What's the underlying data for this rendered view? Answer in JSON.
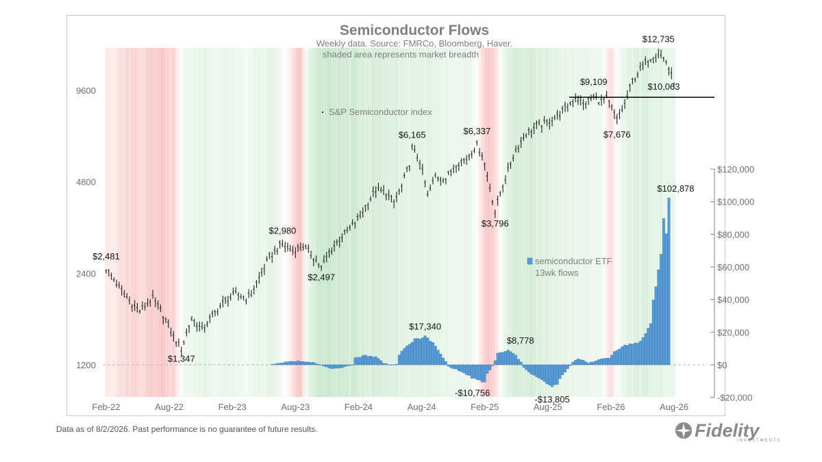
{
  "footer": {
    "note": "Data as of 8/2/2026. Past performance is no guarantee of future results."
  },
  "logo": {
    "name": "Fidelity",
    "sub": "INVESTMENTS"
  },
  "chart_data": {
    "type": "line",
    "title": "Semiconductor Flows",
    "subtitle": [
      "Weekly data.  Source: FMRCo, Bloomberg, Haver.",
      "shaded area represents market breadth"
    ],
    "x_ticks": [
      "Feb-22",
      "Aug-22",
      "Feb-23",
      "Aug-23",
      "Feb-24",
      "Aug-24",
      "Feb-25",
      "Aug-25",
      "Feb-26",
      "Aug-26"
    ],
    "y_left": {
      "scale": "log",
      "ticks": [
        1200,
        2400,
        4800,
        9600
      ],
      "labels": [
        "1200",
        "2400",
        "4800",
        "9600"
      ]
    },
    "y_right": {
      "range": [
        -20000,
        120000
      ],
      "ticks": [
        -20000,
        0,
        20000,
        40000,
        60000,
        80000,
        100000,
        120000
      ],
      "labels": [
        "-$20,000",
        "$0",
        "$20,000",
        "$40,000",
        "$60,000",
        "$80,000",
        "$100,000",
        "$120,000"
      ]
    },
    "legend": {
      "index_label": "S&P Semiconductor index",
      "flow_label": [
        "semiconductor ETF",
        "13wk flows"
      ]
    },
    "annotations": [
      {
        "text": "$2,481",
        "series": "index",
        "week": 0,
        "value": 2481
      },
      {
        "text": "$1,347",
        "series": "index",
        "week": 29,
        "value": 1347
      },
      {
        "text": "$2,980",
        "series": "index",
        "week": 68,
        "value": 2980
      },
      {
        "text": "$2,497",
        "series": "index",
        "week": 83,
        "value": 2497
      },
      {
        "text": "$6,165",
        "series": "index",
        "week": 118,
        "value": 6165
      },
      {
        "text": "$6,337",
        "series": "index",
        "week": 143,
        "value": 6337
      },
      {
        "text": "$3,796",
        "series": "index",
        "week": 150,
        "value": 3796
      },
      {
        "text": "$9,109",
        "series": "index",
        "week": 188,
        "value": 9109
      },
      {
        "text": "$7,676",
        "series": "index",
        "week": 197,
        "value": 7676
      },
      {
        "text": "$12,735",
        "series": "index",
        "week": 213,
        "value": 12735
      },
      {
        "text": "$10,063",
        "series": "index",
        "week": 219,
        "value": 10063
      },
      {
        "text": "$17,340",
        "series": "flows",
        "week": 123,
        "value": 17340
      },
      {
        "text": "-$10,756",
        "series": "flows",
        "week": 146,
        "value": -10756
      },
      {
        "text": "$8,778",
        "series": "flows",
        "week": 155,
        "value": 8778
      },
      {
        "text": "-$13,805",
        "series": "flows",
        "week": 172,
        "value": -13805
      },
      {
        "text": "$102,878",
        "series": "flows",
        "week": 217,
        "value": 102878
      }
    ],
    "reference_line": {
      "value": 9109,
      "series": "index"
    },
    "index_anchors": [
      [
        0,
        2481
      ],
      [
        5,
        2150
      ],
      [
        10,
        1900
      ],
      [
        13,
        1800
      ],
      [
        18,
        1980
      ],
      [
        22,
        1750
      ],
      [
        26,
        1480
      ],
      [
        29,
        1347
      ],
      [
        33,
        1700
      ],
      [
        37,
        1560
      ],
      [
        42,
        1780
      ],
      [
        46,
        1950
      ],
      [
        50,
        2050
      ],
      [
        54,
        1980
      ],
      [
        56,
        2050
      ],
      [
        60,
        2400
      ],
      [
        63,
        2700
      ],
      [
        67,
        2950
      ],
      [
        68,
        2980
      ],
      [
        72,
        2850
      ],
      [
        76,
        2950
      ],
      [
        80,
        2700
      ],
      [
        83,
        2497
      ],
      [
        86,
        2800
      ],
      [
        90,
        3100
      ],
      [
        94,
        3350
      ],
      [
        98,
        3700
      ],
      [
        101,
        4100
      ],
      [
        104,
        4500
      ],
      [
        108,
        4400
      ],
      [
        111,
        4100
      ],
      [
        114,
        4600
      ],
      [
        117,
        5500
      ],
      [
        118,
        6165
      ],
      [
        121,
        5600
      ],
      [
        124,
        4300
      ],
      [
        127,
        5000
      ],
      [
        131,
        4900
      ],
      [
        135,
        5500
      ],
      [
        139,
        5700
      ],
      [
        143,
        6337
      ],
      [
        145,
        5900
      ],
      [
        147,
        5000
      ],
      [
        150,
        3796
      ],
      [
        152,
        4400
      ],
      [
        155,
        5200
      ],
      [
        158,
        6100
      ],
      [
        162,
        6900
      ],
      [
        166,
        7300
      ],
      [
        170,
        7500
      ],
      [
        174,
        7900
      ],
      [
        178,
        8500
      ],
      [
        181,
        9100
      ],
      [
        184,
        8600
      ],
      [
        188,
        9109
      ],
      [
        191,
        8800
      ],
      [
        193,
        9000
      ],
      [
        197,
        7676
      ],
      [
        200,
        8600
      ],
      [
        203,
        10300
      ],
      [
        206,
        11200
      ],
      [
        209,
        12100
      ],
      [
        211,
        12400
      ],
      [
        213,
        12735
      ],
      [
        216,
        11900
      ],
      [
        219,
        10063
      ]
    ],
    "flow_anchors": [
      [
        0,
        null
      ],
      [
        62,
        null
      ],
      [
        63,
        300
      ],
      [
        66,
        700
      ],
      [
        70,
        1800
      ],
      [
        74,
        2300
      ],
      [
        78,
        1900
      ],
      [
        80,
        1500
      ],
      [
        82,
        300
      ],
      [
        85,
        -1500
      ],
      [
        88,
        -2500
      ],
      [
        91,
        -2000
      ],
      [
        93,
        -600
      ],
      [
        95,
        0
      ],
      [
        96,
        4200
      ],
      [
        100,
        5800
      ],
      [
        104,
        4800
      ],
      [
        106,
        2500
      ],
      [
        107,
        1000
      ],
      [
        109,
        300
      ],
      [
        111,
        0
      ],
      [
        112,
        500
      ],
      [
        113,
        6000
      ],
      [
        116,
        11500
      ],
      [
        119,
        15500
      ],
      [
        123,
        17340
      ],
      [
        126,
        13500
      ],
      [
        129,
        6500
      ],
      [
        131,
        2000
      ],
      [
        132,
        -1000
      ],
      [
        136,
        -3500
      ],
      [
        139,
        -6000
      ],
      [
        143,
        -9500
      ],
      [
        146,
        -10756
      ],
      [
        147,
        -5500
      ],
      [
        149,
        -500
      ],
      [
        150,
        2500
      ],
      [
        151,
        6800
      ],
      [
        153,
        7800
      ],
      [
        155,
        8778
      ],
      [
        158,
        5800
      ],
      [
        160,
        1500
      ],
      [
        161,
        -1500
      ],
      [
        164,
        -5500
      ],
      [
        167,
        -8500
      ],
      [
        170,
        -11500
      ],
      [
        172,
        -13805
      ],
      [
        174,
        -11500
      ],
      [
        176,
        -6500
      ],
      [
        178,
        -2500
      ],
      [
        180,
        1500
      ],
      [
        182,
        3800
      ],
      [
        184,
        2800
      ],
      [
        186,
        1200
      ],
      [
        189,
        2500
      ],
      [
        192,
        3800
      ],
      [
        194,
        4200
      ],
      [
        196,
        8000
      ],
      [
        199,
        11500
      ],
      [
        202,
        12500
      ],
      [
        205,
        13500
      ],
      [
        207,
        16500
      ],
      [
        210,
        25000
      ],
      [
        211,
        40000
      ],
      [
        212,
        48000
      ],
      [
        214,
        68000
      ],
      [
        215,
        90000
      ],
      [
        216,
        80000
      ],
      [
        217,
        102878
      ],
      [
        218,
        null
      ]
    ],
    "breadth_anchors": [
      [
        0,
        -0.35
      ],
      [
        3,
        -0.3
      ],
      [
        6,
        -0.5
      ],
      [
        10,
        -0.65
      ],
      [
        14,
        -0.55
      ],
      [
        18,
        -0.85
      ],
      [
        22,
        -0.8
      ],
      [
        26,
        -0.6
      ],
      [
        28,
        -0.2
      ],
      [
        30,
        0.25
      ],
      [
        34,
        0.35
      ],
      [
        38,
        0.45
      ],
      [
        42,
        0.3
      ],
      [
        46,
        0.4
      ],
      [
        50,
        0.3
      ],
      [
        54,
        0.2
      ],
      [
        58,
        0.35
      ],
      [
        62,
        0.4
      ],
      [
        66,
        0.35
      ],
      [
        68,
        0.1
      ],
      [
        71,
        -0.3
      ],
      [
        73,
        -0.6
      ],
      [
        75,
        -0.85
      ],
      [
        77,
        0.2
      ],
      [
        80,
        0.75
      ],
      [
        84,
        0.9
      ],
      [
        88,
        0.85
      ],
      [
        92,
        0.8
      ],
      [
        96,
        0.75
      ],
      [
        100,
        0.7
      ],
      [
        104,
        0.65
      ],
      [
        108,
        0.6
      ],
      [
        112,
        0.55
      ],
      [
        116,
        0.45
      ],
      [
        120,
        0.5
      ],
      [
        124,
        0.45
      ],
      [
        128,
        0.4
      ],
      [
        132,
        0.35
      ],
      [
        136,
        0.3
      ],
      [
        140,
        0.3
      ],
      [
        142,
        0.15
      ],
      [
        145,
        -0.45
      ],
      [
        147,
        -0.75
      ],
      [
        149,
        -0.6
      ],
      [
        151,
        -0.3
      ],
      [
        153,
        0.35
      ],
      [
        156,
        0.6
      ],
      [
        160,
        0.7
      ],
      [
        164,
        0.65
      ],
      [
        168,
        0.6
      ],
      [
        172,
        0.5
      ],
      [
        176,
        0.4
      ],
      [
        180,
        0.4
      ],
      [
        184,
        0.35
      ],
      [
        188,
        0.3
      ],
      [
        191,
        0.25
      ],
      [
        193,
        -0.35
      ],
      [
        195,
        -0.5
      ],
      [
        197,
        0.1
      ],
      [
        200,
        0.45
      ],
      [
        204,
        0.55
      ],
      [
        208,
        0.55
      ],
      [
        212,
        0.5
      ],
      [
        216,
        0.45
      ],
      [
        219,
        0.35
      ]
    ],
    "weeks": 220
  }
}
